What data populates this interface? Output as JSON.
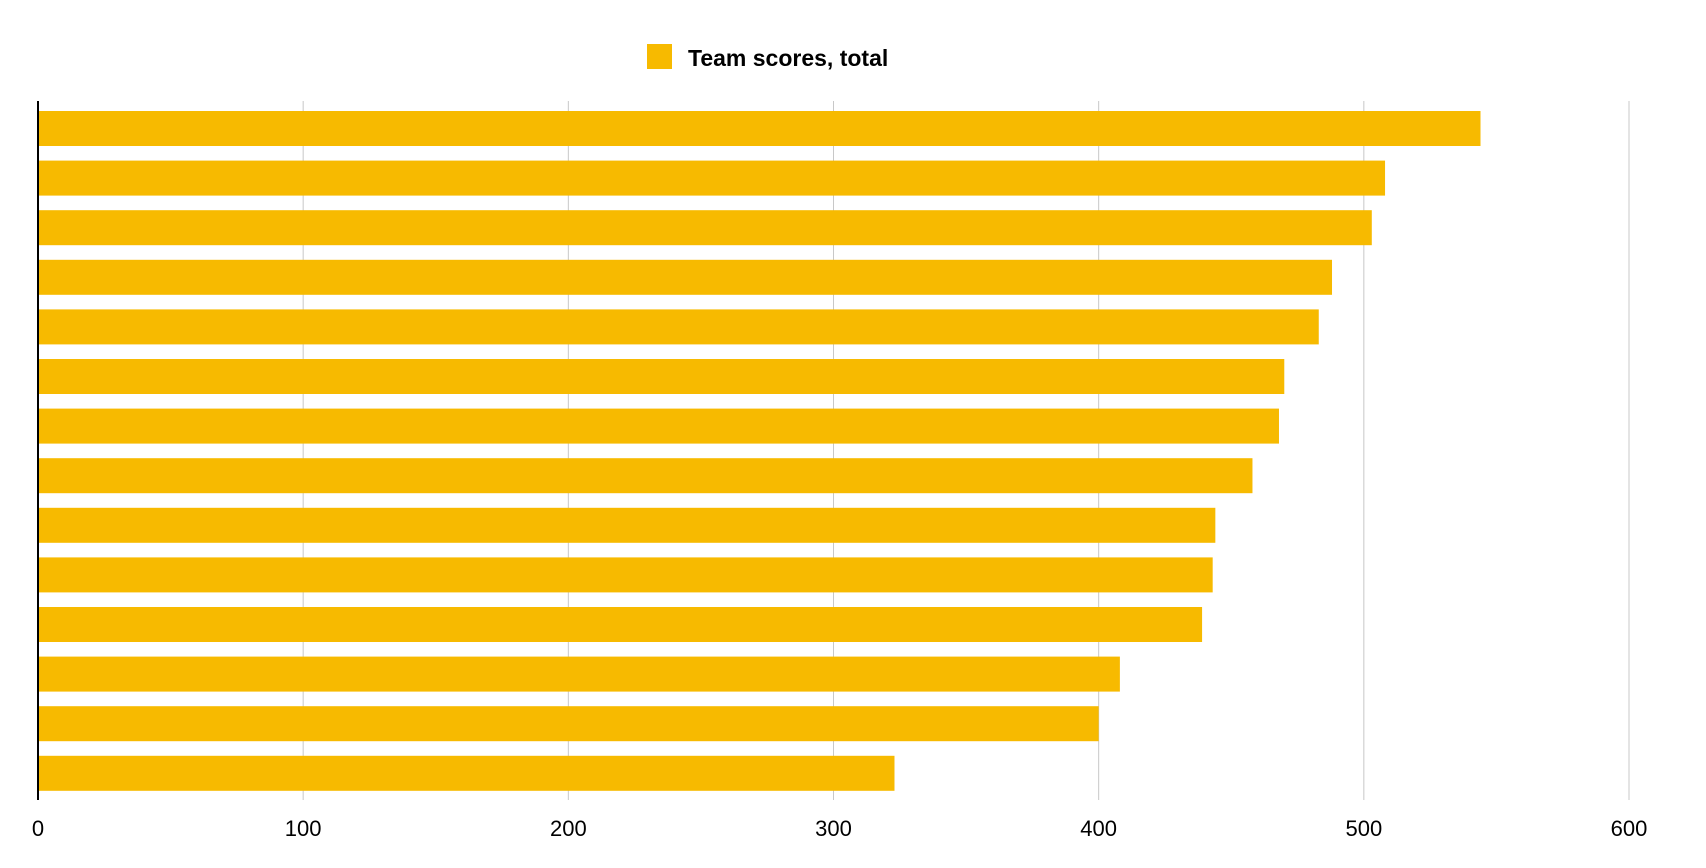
{
  "chart_data": {
    "type": "bar",
    "orientation": "horizontal",
    "title": "",
    "xlabel": "",
    "ylabel": "",
    "xlim": [
      0,
      600
    ],
    "x_ticks": [
      "0",
      "100",
      "200",
      "300",
      "400",
      "500",
      "600"
    ],
    "grid": true,
    "legend_position": "top-center",
    "series": [
      {
        "name": "Team scores, total",
        "color": "#F7BA00",
        "values": [
          544,
          508,
          503,
          488,
          483,
          470,
          468,
          458,
          444,
          443,
          439,
          408,
          400,
          323
        ]
      }
    ]
  }
}
